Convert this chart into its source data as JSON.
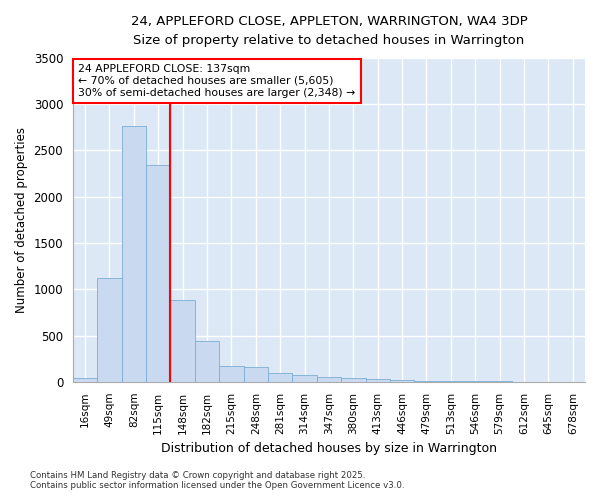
{
  "title1": "24, APPLEFORD CLOSE, APPLETON, WARRINGTON, WA4 3DP",
  "title2": "Size of property relative to detached houses in Warrington",
  "xlabel": "Distribution of detached houses by size in Warrington",
  "ylabel": "Number of detached properties",
  "bar_color": "#c8d9f0",
  "bar_edge_color": "#7aadd4",
  "plot_bg_color": "#dce8f5",
  "fig_bg_color": "#ffffff",
  "grid_color": "#ffffff",
  "categories": [
    "16sqm",
    "49sqm",
    "82sqm",
    "115sqm",
    "148sqm",
    "182sqm",
    "215sqm",
    "248sqm",
    "281sqm",
    "314sqm",
    "347sqm",
    "380sqm",
    "413sqm",
    "446sqm",
    "479sqm",
    "513sqm",
    "546sqm",
    "579sqm",
    "612sqm",
    "645sqm",
    "678sqm"
  ],
  "values": [
    45,
    1120,
    2760,
    2340,
    880,
    440,
    170,
    155,
    90,
    75,
    50,
    38,
    28,
    18,
    12,
    8,
    6,
    4,
    3,
    2,
    2
  ],
  "ylim": [
    0,
    3500
  ],
  "yticks": [
    0,
    500,
    1000,
    1500,
    2000,
    2500,
    3000,
    3500
  ],
  "vline_color": "red",
  "vline_x": 3.5,
  "annotation_text": "24 APPLEFORD CLOSE: 137sqm\n← 70% of detached houses are smaller (5,605)\n30% of semi-detached houses are larger (2,348) →",
  "annotation_box_color": "white",
  "annotation_border_color": "red",
  "footer1": "Contains HM Land Registry data © Crown copyright and database right 2025.",
  "footer2": "Contains public sector information licensed under the Open Government Licence v3.0."
}
